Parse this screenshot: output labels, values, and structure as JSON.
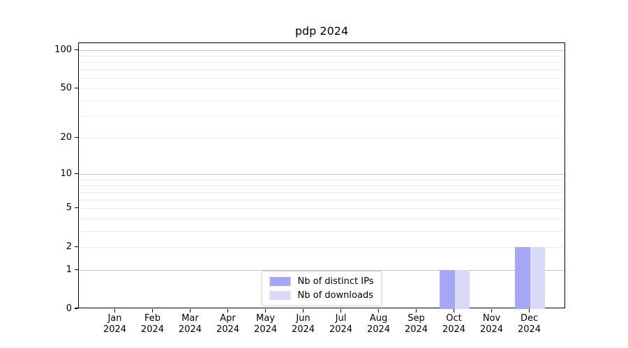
{
  "title": "pdp 2024",
  "colors": {
    "distinct_ips": "#a6a6f2",
    "downloads": "#d9d9f8",
    "grid_major": "#c4c4c4",
    "grid_minor": "#ededed",
    "axis": "#000000",
    "background": "#ffffff",
    "legend_border": "#cccccc"
  },
  "chart_data": {
    "type": "bar",
    "title": "pdp 2024",
    "categories": [
      "Jan 2024",
      "Feb 2024",
      "Mar 2024",
      "Apr 2024",
      "May 2024",
      "Jun 2024",
      "Jul 2024",
      "Aug 2024",
      "Sep 2024",
      "Oct 2024",
      "Nov 2024",
      "Dec 2024"
    ],
    "series": [
      {
        "name": "Nb of distinct IPs",
        "color": "#a6a6f2",
        "values": [
          0,
          0,
          0,
          0,
          0,
          0,
          0,
          0,
          0,
          1,
          0,
          2
        ]
      },
      {
        "name": "Nb of downloads",
        "color": "#d9d9f8",
        "values": [
          0,
          0,
          0,
          0,
          0,
          0,
          0,
          0,
          0,
          1,
          0,
          2
        ]
      }
    ],
    "xlabel": "",
    "ylabel": "",
    "yscale": "log1p",
    "ylim": [
      0,
      113.6
    ],
    "y_ticks": [
      0,
      1,
      2,
      5,
      10,
      20,
      50,
      100
    ],
    "y_major_gridlines": [
      1,
      10,
      100
    ],
    "y_minor_gridlines": [
      2,
      3,
      4,
      5,
      6,
      7,
      8,
      9,
      20,
      30,
      40,
      50,
      60,
      70,
      80,
      90
    ],
    "grid": true,
    "legend_position": "lower center"
  }
}
